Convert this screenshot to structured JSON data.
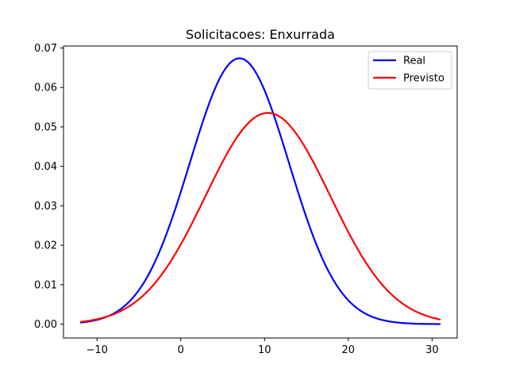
{
  "chart_data": {
    "type": "line",
    "title": "Solicitacoes: Enxurrada",
    "xlabel": "",
    "ylabel": "",
    "xlim": [
      -14,
      33
    ],
    "ylim": [
      -0.0035,
      0.0705
    ],
    "xticks": [
      -10,
      0,
      10,
      20,
      30
    ],
    "xtick_labels": [
      "−10",
      "0",
      "10",
      "20",
      "30"
    ],
    "yticks": [
      0.0,
      0.01,
      0.02,
      0.03,
      0.04,
      0.05,
      0.06,
      0.07
    ],
    "ytick_labels": [
      "0.00",
      "0.01",
      "0.02",
      "0.03",
      "0.04",
      "0.05",
      "0.06",
      "0.07"
    ],
    "grid": false,
    "legend_position": "top-right",
    "series": [
      {
        "name": "Real",
        "color": "#0000ff",
        "distribution": {
          "kind": "normal",
          "mean": 7.0,
          "std": 5.92,
          "x_range": [
            -12,
            31
          ],
          "samples": 200
        }
      },
      {
        "name": "Previsto",
        "color": "#ff0000",
        "distribution": {
          "kind": "normal",
          "mean": 10.4,
          "std": 7.45,
          "x_range": [
            -12,
            31
          ],
          "samples": 200
        }
      }
    ]
  }
}
